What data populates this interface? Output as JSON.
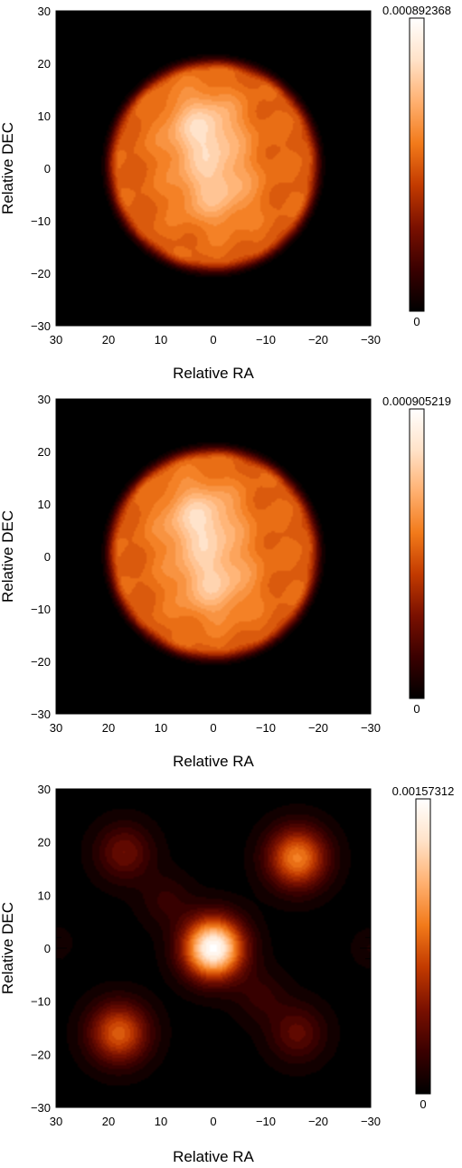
{
  "chart_data": [
    {
      "type": "heatmap",
      "title": "",
      "xlabel": "Relative RA",
      "ylabel": "Relative DEC",
      "xlim": [
        30,
        -30
      ],
      "ylim": [
        -30,
        30
      ],
      "xticks": [
        30,
        20,
        10,
        0,
        -10,
        -20,
        -30
      ],
      "yticks": [
        30,
        20,
        10,
        0,
        -10,
        -20,
        -30
      ],
      "xtick_labels": [
        "30",
        "20",
        "10",
        "0",
        "−10",
        "−20",
        "−30"
      ],
      "ytick_labels": [
        "30",
        "20",
        "10",
        "0",
        "−10",
        "−20",
        "−30"
      ],
      "colorbar": {
        "min": 0,
        "max": 0.000892368,
        "min_label": "0",
        "max_label": "0.000892368"
      },
      "colormap": [
        "#000000",
        "#3a0000",
        "#7a1000",
        "#c23a00",
        "#f27a1a",
        "#ffb070",
        "#ffe2c8",
        "#ffffff"
      ],
      "disk": {
        "center": [
          0,
          0.5
        ],
        "radius": 21
      },
      "features": [
        {
          "x": 2,
          "y": 7.5,
          "sigma": 5,
          "amp": 0.3
        },
        {
          "x": -0.5,
          "y": -4,
          "sigma": 5,
          "amp": 0.22
        }
      ]
    },
    {
      "type": "heatmap",
      "title": "",
      "xlabel": "Relative RA",
      "ylabel": "Relative DEC",
      "xlim": [
        30,
        -30
      ],
      "ylim": [
        -30,
        30
      ],
      "xticks": [
        30,
        20,
        10,
        0,
        -10,
        -20,
        -30
      ],
      "yticks": [
        30,
        20,
        10,
        0,
        -10,
        -20,
        -30
      ],
      "xtick_labels": [
        "30",
        "20",
        "10",
        "0",
        "−10",
        "−20",
        "−30"
      ],
      "ytick_labels": [
        "30",
        "20",
        "10",
        "0",
        "−10",
        "−20",
        "−30"
      ],
      "colorbar": {
        "min": 0,
        "max": 0.000905219,
        "min_label": "0",
        "max_label": "0.000905219"
      },
      "colormap": [
        "#000000",
        "#3a0000",
        "#7a1000",
        "#c23a00",
        "#f27a1a",
        "#ffb070",
        "#ffe2c8",
        "#ffffff"
      ],
      "disk": {
        "center": [
          0,
          0.5
        ],
        "radius": 21
      },
      "features": [
        {
          "x": 2.5,
          "y": 7,
          "sigma": 5,
          "amp": 0.3
        },
        {
          "x": 0,
          "y": -5,
          "sigma": 5,
          "amp": 0.24
        }
      ]
    },
    {
      "type": "heatmap",
      "title": "",
      "xlabel": "Relative RA",
      "ylabel": "Relative DEC",
      "xlim": [
        30,
        -30
      ],
      "ylim": [
        -30,
        30
      ],
      "xticks": [
        30,
        20,
        10,
        0,
        -10,
        -20,
        -30
      ],
      "yticks": [
        30,
        20,
        10,
        0,
        -10,
        -20,
        -30
      ],
      "xtick_labels": [
        "30",
        "20",
        "10",
        "0",
        "−10",
        "−20",
        "−30"
      ],
      "ytick_labels": [
        "30",
        "20",
        "10",
        "0",
        "−10",
        "−20",
        "−30"
      ],
      "colorbar": {
        "min": 0,
        "max": 0.00157312,
        "min_label": "0",
        "max_label": "0.00157312"
      },
      "colormap": [
        "#000000",
        "#3a0000",
        "#7a1000",
        "#c23a00",
        "#f27a1a",
        "#ffb070",
        "#ffe2c8",
        "#ffffff"
      ],
      "peaks": [
        {
          "x": 0,
          "y": 0,
          "sigma": 4.0,
          "amp": 1.0
        },
        {
          "x": -16,
          "y": 17,
          "sigma": 4.0,
          "amp": 0.58
        },
        {
          "x": 18,
          "y": -16,
          "sigma": 4.0,
          "amp": 0.5
        },
        {
          "x": 17,
          "y": 18,
          "sigma": 3.8,
          "amp": 0.25
        },
        {
          "x": -16,
          "y": -16,
          "sigma": 3.8,
          "amp": 0.22
        },
        {
          "x": 9,
          "y": 9,
          "sigma": 3.5,
          "amp": 0.12
        },
        {
          "x": -9,
          "y": -9,
          "sigma": 3.5,
          "amp": 0.12
        },
        {
          "x": -30,
          "y": 0,
          "sigma": 2.5,
          "amp": 0.07
        },
        {
          "x": 30,
          "y": 1,
          "sigma": 2.5,
          "amp": 0.05
        }
      ]
    }
  ]
}
